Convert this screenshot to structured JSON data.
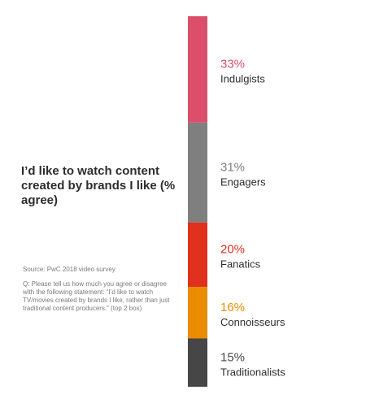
{
  "header": {
    "title": "I’d like to watch content created by brands I like (% agree)"
  },
  "footnote": {
    "source": "Source: PwC 2018 video survey",
    "question": "Q: Please tell us how much you agree or disagree with the following statement: “I’d like to watch TV/movies created by brands I like, rather than just traditional content producers.” (top 2 box)"
  },
  "chart_data": {
    "type": "bar",
    "orientation": "stacked-vertical",
    "series": [
      {
        "name": "Indulgists",
        "value": 33,
        "label": "33%",
        "bar_color": "#dc4f6a",
        "label_color": "#dc4f6a"
      },
      {
        "name": "Engagers",
        "value": 31,
        "label": "31%",
        "bar_color": "#7f7f7f",
        "label_color": "#7f7f7f"
      },
      {
        "name": "Fanatics",
        "value": 20,
        "label": "20%",
        "bar_color": "#e0301e",
        "label_color": "#e0301e"
      },
      {
        "name": "Connoisseurs",
        "value": 16,
        "label": "16%",
        "bar_color": "#eb8c00",
        "label_color": "#eb8c00"
      },
      {
        "name": "Traditionalists",
        "value": 15,
        "label": "15%",
        "bar_color": "#464646",
        "label_color": "#464646"
      }
    ]
  }
}
